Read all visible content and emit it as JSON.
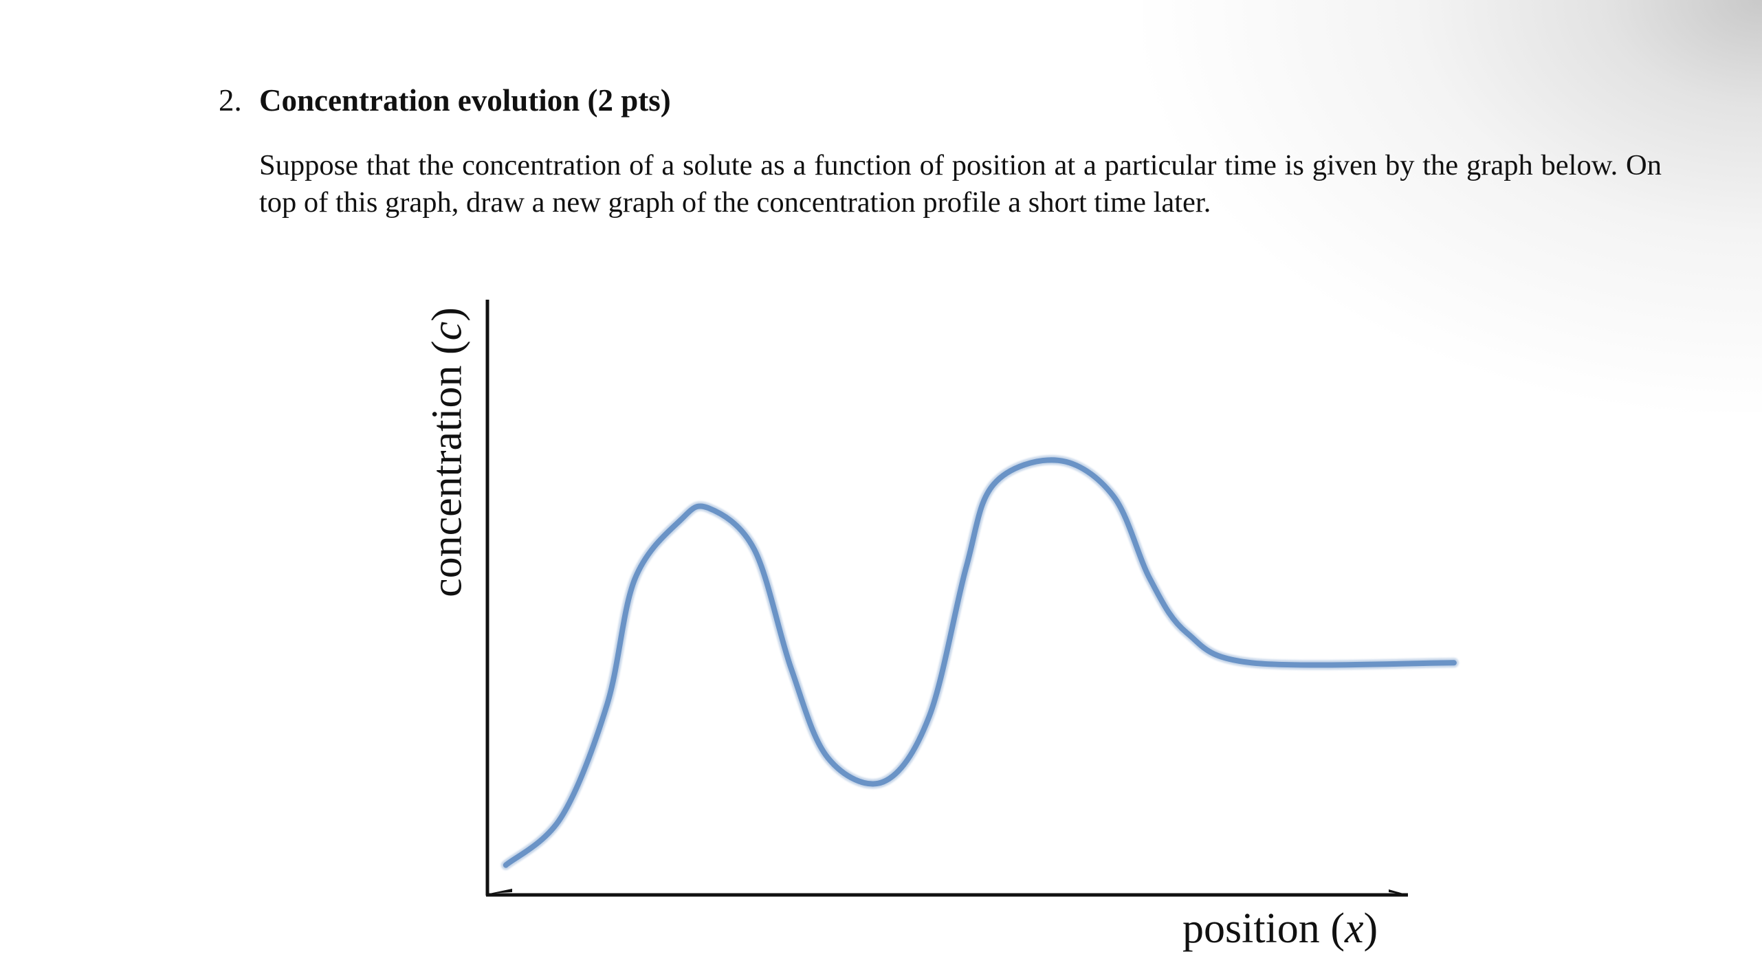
{
  "problem": {
    "number": "2.",
    "title": "Concentration evolution (2 pts)",
    "text": "Suppose that the concentration of a solute as a function of position at a particular time is given by the graph below. On top of this graph, draw a new graph of the concentration profile a short time later."
  },
  "figure": {
    "ylabel": {
      "word": "concentration",
      "open": "(",
      "var": "c",
      "close": ")"
    },
    "xlabel": {
      "word": "position",
      "open": "(",
      "var": "x",
      "close": ")"
    },
    "curve_color": "#6a93c6",
    "axis_color": "#111111"
  },
  "chart_data": {
    "type": "line",
    "title": "",
    "xlabel": "position (x)",
    "ylabel": "concentration (c)",
    "ticks": "none",
    "grid": false,
    "xlim": [
      0,
      1
    ],
    "ylim": [
      0,
      1
    ],
    "series": [
      {
        "x": [
          0.02,
          0.08,
          0.13,
          0.16,
          0.21,
          0.24,
          0.29,
          0.33,
          0.37,
          0.43,
          0.48,
          0.52,
          0.55,
          0.62,
          0.68,
          0.72,
          0.76,
          0.83,
          1.05
        ],
        "y": [
          0.05,
          0.13,
          0.32,
          0.53,
          0.63,
          0.65,
          0.58,
          0.38,
          0.23,
          0.19,
          0.3,
          0.55,
          0.69,
          0.73,
          0.67,
          0.53,
          0.44,
          0.39,
          0.39
        ]
      }
    ]
  }
}
